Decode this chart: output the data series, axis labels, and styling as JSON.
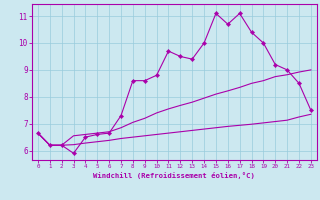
{
  "xlabel": "Windchill (Refroidissement éolien,°C)",
  "bg_color": "#cce8f0",
  "line_color": "#aa00aa",
  "grid_color": "#99ccdd",
  "x_values": [
    0,
    1,
    2,
    3,
    4,
    5,
    6,
    7,
    8,
    9,
    10,
    11,
    12,
    13,
    14,
    15,
    16,
    17,
    18,
    19,
    20,
    21,
    22,
    23
  ],
  "line1_y": [
    6.65,
    6.2,
    6.2,
    5.9,
    6.5,
    6.6,
    6.65,
    7.3,
    8.6,
    8.6,
    8.8,
    9.7,
    9.5,
    9.4,
    10.0,
    11.1,
    10.7,
    11.1,
    10.4,
    10.0,
    9.2,
    9.0,
    8.5,
    7.5
  ],
  "line2_y": [
    6.65,
    6.2,
    6.2,
    6.55,
    6.6,
    6.65,
    6.7,
    6.85,
    7.05,
    7.2,
    7.4,
    7.55,
    7.68,
    7.8,
    7.95,
    8.1,
    8.22,
    8.35,
    8.5,
    8.6,
    8.75,
    8.82,
    8.92,
    9.0
  ],
  "line3_y": [
    6.65,
    6.2,
    6.2,
    6.22,
    6.28,
    6.33,
    6.38,
    6.45,
    6.5,
    6.55,
    6.6,
    6.65,
    6.7,
    6.75,
    6.8,
    6.85,
    6.9,
    6.94,
    6.98,
    7.03,
    7.08,
    7.13,
    7.25,
    7.35
  ],
  "xlim": [
    -0.5,
    23.5
  ],
  "ylim": [
    5.65,
    11.45
  ],
  "yticks": [
    6,
    7,
    8,
    9,
    10,
    11
  ],
  "xticks": [
    0,
    1,
    2,
    3,
    4,
    5,
    6,
    7,
    8,
    9,
    10,
    11,
    12,
    13,
    14,
    15,
    16,
    17,
    18,
    19,
    20,
    21,
    22,
    23
  ],
  "spine_color": "#aa00aa",
  "xlabel_fontsize": 5.2,
  "xtick_fontsize": 4.2,
  "ytick_fontsize": 5.5
}
